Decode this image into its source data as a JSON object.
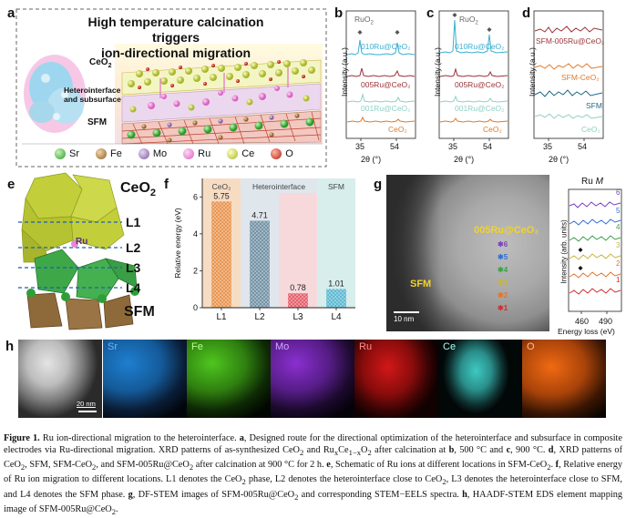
{
  "panel_letters": {
    "a": "a",
    "b": "b",
    "c": "c",
    "d": "d",
    "e": "e",
    "f": "f",
    "g": "g",
    "h": "h"
  },
  "panel_a": {
    "title_line1": "High temperature calcination triggers",
    "title_line2": "ion-directional migration",
    "label_ceo2": "CeO",
    "label_ceo2_sub": "2",
    "label_hetero_1": "Heterointerface",
    "label_hetero_2": "and subsurface",
    "label_sfm": "SFM",
    "legend": [
      {
        "name": "Sr",
        "color": "#3bbf3b"
      },
      {
        "name": "Fe",
        "color": "#b98a4b"
      },
      {
        "name": "Mo",
        "color": "#9a7bb5"
      },
      {
        "name": "Ru",
        "color": "#e986d7"
      },
      {
        "name": "Ce",
        "color": "#c9d648"
      },
      {
        "name": "O",
        "color": "#d8301f"
      }
    ]
  },
  "xrd_common": {
    "ylabel": "Intensity (a.u.)",
    "xlabel": "2θ (°)",
    "ticks": [
      "35",
      "54"
    ]
  },
  "panel_b": {
    "peak_label": "RuO",
    "peak_label_sub": "2",
    "traces": [
      {
        "label": "010Ru@CeO₂",
        "color": "#3aaed0"
      },
      {
        "label": "005Ru@CeO₂",
        "color": "#9b3238"
      },
      {
        "label": "001Ru@CeO₂",
        "color": "#8fd0c4"
      },
      {
        "label": "CeO₂",
        "color": "#e07a2a"
      }
    ]
  },
  "panel_c": {
    "peak_label": "RuO",
    "peak_label_sub": "2",
    "traces": [
      {
        "label": "010Ru@CeO₂",
        "color": "#3aaed0"
      },
      {
        "label": "005Ru@CeO₂",
        "color": "#9b3238"
      },
      {
        "label": "001Ru@CeO₂",
        "color": "#8fd0c4"
      },
      {
        "label": "CeO₂",
        "color": "#e07a2a"
      }
    ]
  },
  "panel_d": {
    "traces": [
      {
        "label": "SFM-005Ru@CeO₂",
        "color": "#9b3238"
      },
      {
        "label": "SFM-CeO₂",
        "color": "#e07a2a"
      },
      {
        "label": "SFM",
        "color": "#1f6a86"
      },
      {
        "label": "CeO₂",
        "color": "#8fd0c4"
      }
    ]
  },
  "panel_e": {
    "label_ceo2": "CeO",
    "label_ceo2_sub": "2",
    "label_ru": "Ru",
    "layers": [
      "L1",
      "L2",
      "L3",
      "L4"
    ],
    "label_sfm": "SFM"
  },
  "chart_data": {
    "type": "bar",
    "title": "",
    "ylabel": "Relative energy (eV)",
    "categories": [
      "L1",
      "L2",
      "L3",
      "L4"
    ],
    "values": [
      5.75,
      4.71,
      0.78,
      1.01
    ],
    "value_labels": [
      "5.75",
      "4.71",
      "0.78",
      "1.01"
    ],
    "region_labels": [
      "CeO₂",
      "Heterointerface",
      "SFM"
    ],
    "region_colors": [
      "#f7dcc4",
      "#dfe6ec",
      "#f7d9dc",
      "#d7eeec"
    ],
    "bar_colors": [
      "#e8924b",
      "#6f8fa3",
      "#e45b68",
      "#58b7d0"
    ],
    "ylim": [
      0,
      7
    ],
    "yticks": [
      0,
      2,
      4,
      6
    ]
  },
  "panel_g": {
    "label_sample": "005Ru@CeO₂",
    "label_sfm": "SFM",
    "scalebar": "10 nm",
    "point_labels": [
      "6",
      "5",
      "4",
      "3",
      "2",
      "1"
    ],
    "point_colors": [
      "#7b3fbf",
      "#2f6fd6",
      "#3aa04a",
      "#c9b43a",
      "#e0762b",
      "#d12e2e"
    ],
    "spectra_title": "Ru",
    "spectra_title_italic": "M",
    "spectra_ylabel": "Intensity (arb. units)",
    "spectra_xlabel": "Energy loss (eV)",
    "spectra_ticks": [
      "460",
      "490"
    ]
  },
  "panel_h": {
    "scalebar": "20 nm",
    "maps": [
      {
        "label": "Sr",
        "color": "#1e7fd0"
      },
      {
        "label": "Fe",
        "color": "#4fc61f"
      },
      {
        "label": "Mo",
        "color": "#8a2fd0"
      },
      {
        "label": "Ru",
        "color": "#d11818"
      },
      {
        "label": "Ce",
        "color": "#3fc9c2"
      },
      {
        "label": "O",
        "color": "#f06a12"
      }
    ]
  },
  "caption": {
    "label": "Figure 1.",
    "s1": " Ru ion-directional migration to the heterointerface. ",
    "a": "a",
    "s2": ", Designed route for the directional optimization of the heterointerface and subsurface in composite electrodes via Ru-directional migration. XRD patterns of as-synthesized CeO",
    "s2b": " and Ru",
    "s2c": "Ce",
    "s2d": "O",
    "s2e": " after calcination at ",
    "b": "b",
    "s3": ", 500 °C and ",
    "c": "c",
    "s4": ", 900 °C. ",
    "d": "d",
    "s5": ", XRD patterns of CeO",
    "s5b": ", SFM, SFM-CeO",
    "s5c": ", and SFM-005Ru@CeO",
    "s5d": " after calcination at 900 °C for 2 h. ",
    "e": "e",
    "s6": ", Schematic of Ru ions at different locations in SFM-CeO",
    "s6b": ". ",
    "f": "f",
    "s7": ", Relative energy of Ru ion migration to different locations. L1 denotes the CeO",
    "s7b": " phase, L2 denotes the heterointerface close to CeO",
    "s7c": ", L3 denotes the heterointerface close to SFM, and L4 denotes the SFM phase. ",
    "g": "g",
    "s8": ", DF-STEM images of SFM-005Ru@CeO",
    "s8b": " and corresponding STEM−EELS spectra. ",
    "h": "h",
    "s9": ", HAADF-STEM EDS element mapping image of SFM-005Ru@CeO",
    "s9b": ".",
    "sub2": "2",
    "subx": "x",
    "sub1mx": "1−x"
  }
}
